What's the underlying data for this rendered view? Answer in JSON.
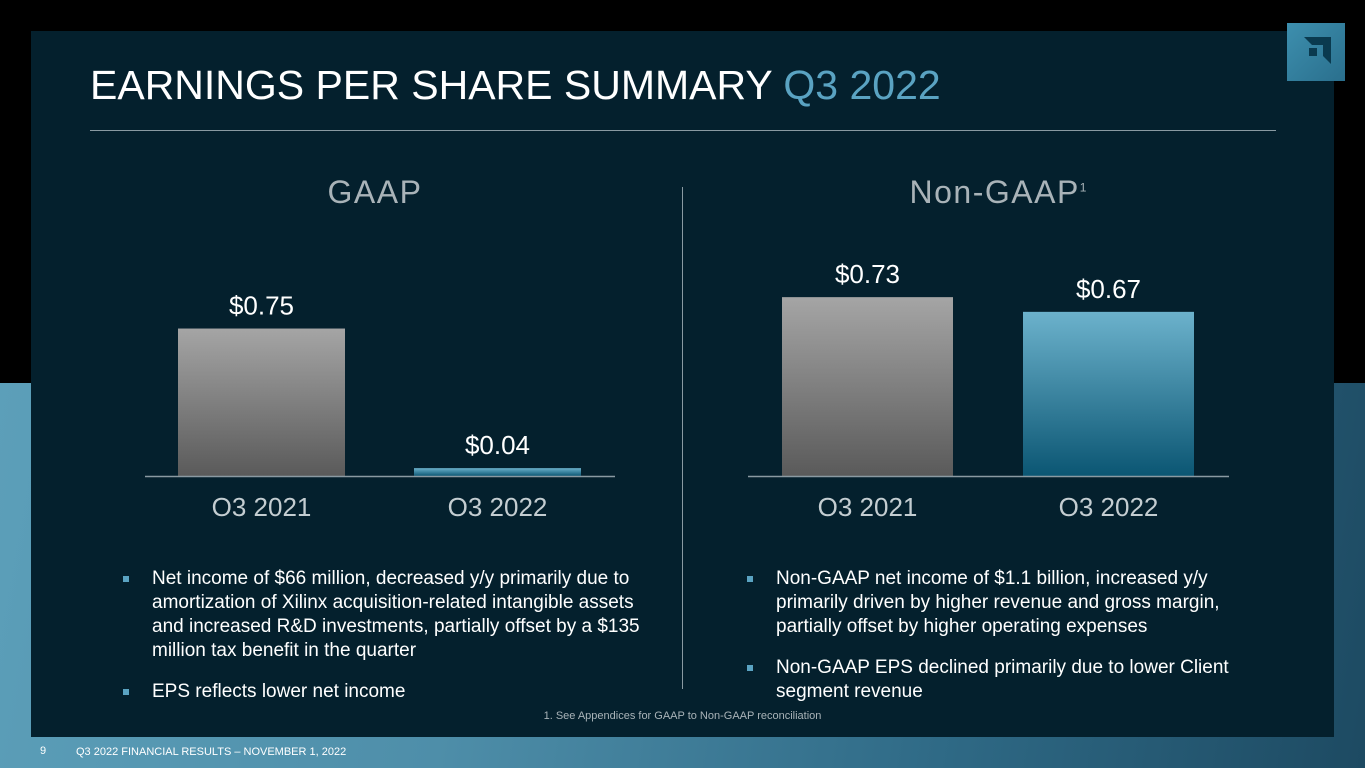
{
  "header": {
    "title_main": "EARNINGS PER SHARE SUMMARY",
    "title_accent": "Q3 2022"
  },
  "colors": {
    "accent": "#5aa3c2",
    "panel": "#04202d",
    "bar_gray_top": "#a5a5a5",
    "bar_gray_bottom": "#5a5a5a",
    "bar_teal_top": "#6cb2cc",
    "bar_teal_bottom": "#0b5673"
  },
  "logo": {
    "icon": "amd-arrow-icon"
  },
  "gaap": {
    "title": "GAAP",
    "bullets": [
      "Net income of $66 million, decreased y/y primarily due to amortization of Xilinx acquisition-related intangible assets and increased R&D investments, partially offset by a $135 million tax benefit in the quarter",
      "EPS reflects lower net income"
    ]
  },
  "non_gaap": {
    "title": "Non-GAAP",
    "footnote_marker": "1",
    "bullets": [
      "Non-GAAP net income of $1.1 billion, increased y/y primarily driven by higher revenue and gross margin, partially offset by higher operating expenses",
      "Non-GAAP EPS declined primarily due to lower Client segment revenue"
    ]
  },
  "chart_data": [
    {
      "type": "bar",
      "title": "GAAP",
      "categories": [
        "O3 2021",
        "O3 2022"
      ],
      "values": [
        0.75,
        0.04
      ],
      "labels": [
        "$0.75",
        "$0.04"
      ],
      "ylim": [
        0,
        0.8
      ],
      "grid": false,
      "legend": "none"
    },
    {
      "type": "bar",
      "title": "Non-GAAP",
      "categories": [
        "O3 2021",
        "O3 2022"
      ],
      "values": [
        0.73,
        0.67
      ],
      "labels": [
        "$0.73",
        "$0.67"
      ],
      "ylim": [
        0,
        0.8
      ],
      "grid": false,
      "legend": "none"
    }
  ],
  "footnote": "1. See Appendices for GAAP to Non-GAAP reconciliation",
  "footer": {
    "page_number": "9",
    "text": "Q3 2022 FINANCIAL RESULTS – NOVEMBER 1, 2022"
  }
}
